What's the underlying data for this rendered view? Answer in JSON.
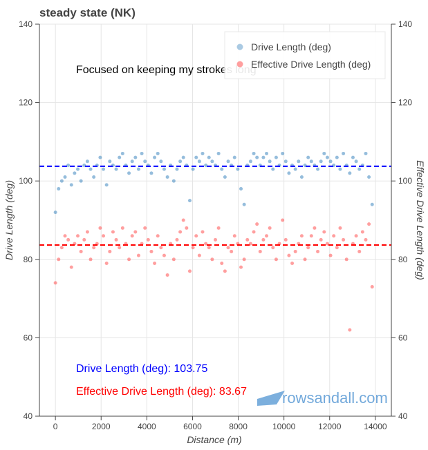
{
  "chart_data": {
    "type": "scatter",
    "title": "steady state (NK)",
    "annotation": "Focused on keeping my strokes long",
    "xlabel": "Distance (m)",
    "ylabel": "Drive Length (deg)",
    "ylabel_right": "Effective Drive Length (deg)",
    "xlim": [
      -700,
      14700
    ],
    "ylim": [
      40,
      140
    ],
    "xticks": [
      0,
      2000,
      4000,
      6000,
      8000,
      10000,
      12000,
      14000
    ],
    "yticks": [
      40,
      60,
      80,
      100,
      120,
      140
    ],
    "grid": true,
    "legend_position": "top-right",
    "x_step": 140,
    "series": [
      {
        "name": "Drive Length (deg)",
        "color": "#2b7bba",
        "mean": 103.75,
        "mean_color": "#0000ff",
        "mean_label": "Drive Length (deg): 103.75",
        "values": [
          92,
          98,
          100,
          101,
          104,
          99,
          102,
          103,
          100,
          104,
          105,
          103,
          101,
          104,
          106,
          103,
          99,
          105,
          104,
          103,
          106,
          107,
          104,
          102,
          105,
          106,
          103,
          107,
          105,
          104,
          102,
          106,
          107,
          105,
          103,
          101,
          104,
          100,
          103,
          105,
          106,
          104,
          95,
          103,
          106,
          105,
          107,
          104,
          106,
          105,
          104,
          107,
          103,
          101,
          105,
          104,
          106,
          103,
          98,
          94,
          104,
          105,
          107,
          106,
          104,
          106,
          107,
          105,
          103,
          106,
          104,
          107,
          105,
          102,
          104,
          103,
          105,
          101,
          104,
          106,
          105,
          104,
          103,
          105,
          107,
          106,
          105,
          104,
          106,
          103,
          107,
          104,
          102,
          106,
          105,
          103,
          104,
          107,
          101,
          94
        ]
      },
      {
        "name": "Effective Drive Length (deg)",
        "color": "#ff4040",
        "mean": 83.67,
        "mean_color": "#ff0000",
        "mean_label": "Effective Drive Length (deg): 83.67",
        "values": [
          74,
          80,
          83,
          86,
          85,
          78,
          84,
          86,
          82,
          85,
          87,
          80,
          83,
          84,
          88,
          86,
          79,
          82,
          87,
          85,
          83,
          88,
          84,
          80,
          86,
          87,
          81,
          84,
          88,
          85,
          82,
          79,
          86,
          83,
          81,
          76,
          84,
          80,
          85,
          87,
          90,
          88,
          77,
          83,
          86,
          81,
          87,
          84,
          83,
          80,
          85,
          88,
          79,
          77,
          83,
          82,
          86,
          84,
          78,
          80,
          85,
          84,
          87,
          89,
          82,
          85,
          86,
          88,
          83,
          80,
          84,
          90,
          85,
          81,
          79,
          82,
          84,
          86,
          80,
          83,
          86,
          88,
          82,
          85,
          87,
          84,
          81,
          86,
          83,
          88,
          85,
          80,
          62,
          84,
          86,
          82,
          87,
          85,
          89,
          73
        ]
      }
    ]
  },
  "watermark": "rowsandall.com"
}
